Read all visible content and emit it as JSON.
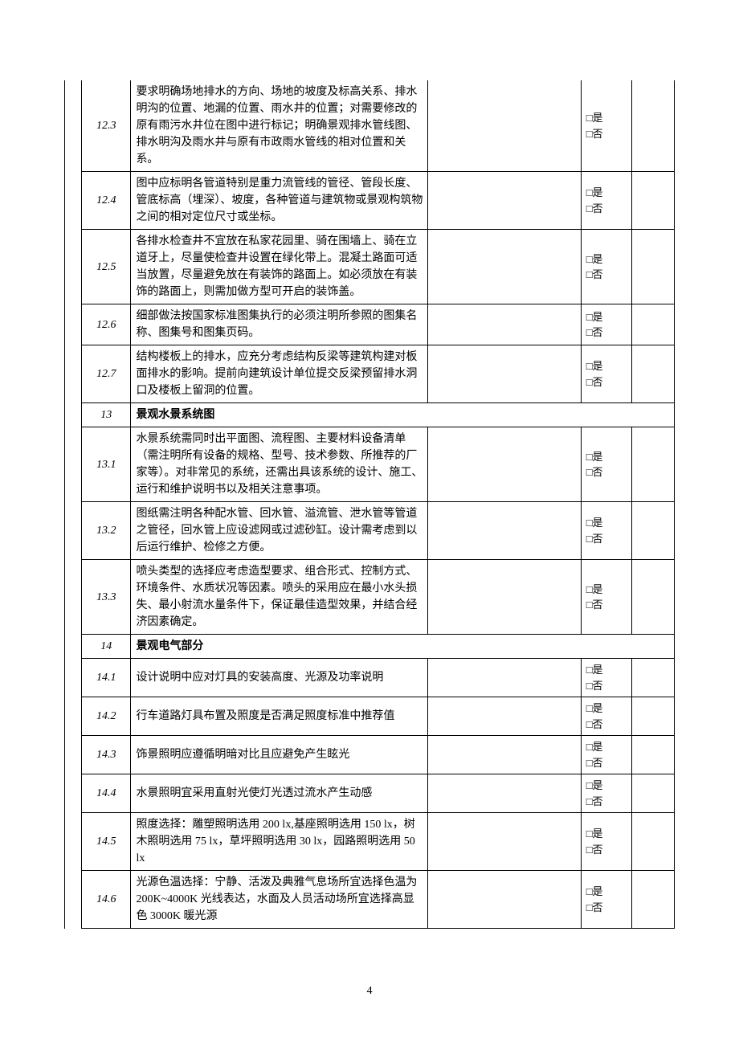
{
  "page_number": "4",
  "checkbox_yes": "□是",
  "checkbox_no": "□否",
  "table": {
    "border_color": "#000000",
    "background_color": "#ffffff",
    "font_family": "SimSun",
    "font_size": 14,
    "rows": [
      {
        "id": "12.3",
        "type": "item",
        "desc": "要求明确场地排水的方向、场地的坡度及标高关系、排水明沟的位置、地漏的位置、雨水井的位置；对需要修改的原有雨污水井位在图中进行标记；明确景观排水管线图、排水明沟及雨水井与原有市政雨水管线的相对位置和关系。"
      },
      {
        "id": "12.4",
        "type": "item",
        "desc": "图中应标明各管道特别是重力流管线的管径、管段长度、管底标高（埋深）、坡度，各种管道与建筑物或景观构筑物之间的相对定位尺寸或坐标。"
      },
      {
        "id": "12.5",
        "type": "item",
        "desc": "各排水检查井不宜放在私家花园里、骑在围墙上、骑在立道牙上，尽量使检查井设置在绿化带上。混凝土路面可适当放置，尽量避免放在有装饰的路面上。如必须放在有装饰的路面上，则需加做方型可开启的装饰盖。"
      },
      {
        "id": "12.6",
        "type": "item",
        "desc": "细部做法按国家标准图集执行的必须注明所参照的图集名称、图集号和图集页码。"
      },
      {
        "id": "12.7",
        "type": "item",
        "desc": "结构楼板上的排水，应充分考虑结构反梁等建筑构建对板面排水的影响。提前向建筑设计单位提交反梁预留排水洞口及楼板上留洞的位置。"
      },
      {
        "id": "13",
        "type": "section",
        "desc": "景观水景系统图"
      },
      {
        "id": "13.1",
        "type": "item",
        "desc": "水景系统需同时出平面图、流程图、主要材料设备清单（需注明所有设备的规格、型号、技术参数、所推荐的厂家等）。对非常见的系统，还需出具该系统的设计、施工、运行和维护说明书以及相关注意事项。"
      },
      {
        "id": "13.2",
        "type": "item",
        "desc": "图纸需注明各种配水管、回水管、溢流管、泄水管等管道之管径，回水管上应设滤网或过滤砂缸。设计需考虑到以后运行维护、检修之方便。"
      },
      {
        "id": "13.3",
        "type": "item",
        "desc": "喷头类型的选择应考虑造型要求、组合形式、控制方式、环境条件、水质状况等因素。喷头的采用应在最小水头损失、最小射流水量条件下，保证最佳造型效果，并结合经济因素确定。"
      },
      {
        "id": "14",
        "type": "section",
        "desc": "景观电气部分"
      },
      {
        "id": "14.1",
        "type": "item",
        "desc": "设计说明中应对灯具的安装高度、光源及功率说明"
      },
      {
        "id": "14.2",
        "type": "item",
        "desc": "行车道路灯具布置及照度是否满足照度标准中推荐值"
      },
      {
        "id": "14.3",
        "type": "item",
        "desc": "饰景照明应遵循明暗对比且应避免产生眩光"
      },
      {
        "id": "14.4",
        "type": "item",
        "desc": "水景照明宜采用直射光使灯光透过流水产生动感"
      },
      {
        "id": "14.5",
        "type": "item",
        "desc": "照度选择：雕塑照明选用 200 lx,基座照明选用 150 lx，树木照明选用 75 lx，草坪照明选用 30 lx，园路照明选用 50 lx"
      },
      {
        "id": "14.6",
        "type": "item",
        "desc": "光源色温选择：宁静、活泼及典雅气息场所宜选择色温为 200K~4000K 光线表达，水面及人员活动场所宜选择高显色 3000K 暖光源"
      }
    ]
  }
}
